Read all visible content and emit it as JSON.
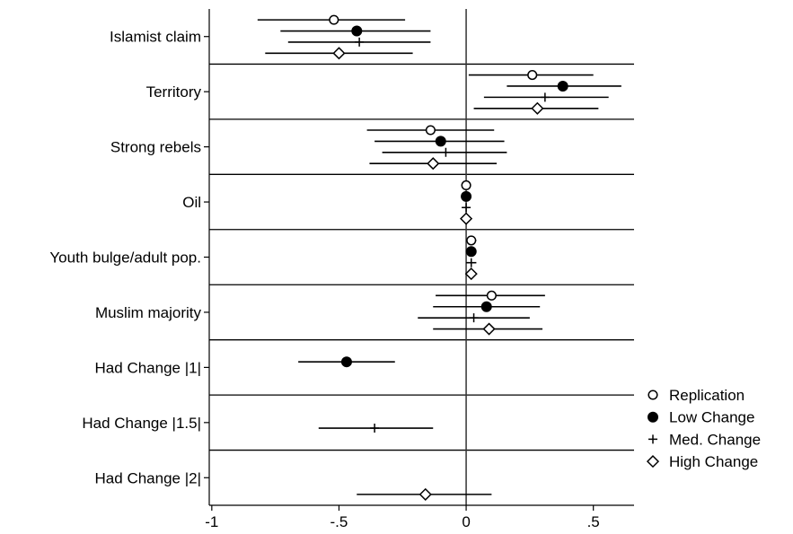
{
  "chart_data": {
    "type": "coefficient-plot",
    "title": "",
    "xlabel": "",
    "ylabel": "",
    "xlim": [
      -1.01,
      0.66
    ],
    "xticks": [
      -1,
      -0.5,
      0,
      0.5
    ],
    "xtick_labels": [
      "-1",
      "-.5",
      "0",
      ".5"
    ],
    "reference_line_x": 0,
    "categories": [
      "Islamist claim",
      "Territory",
      "Strong rebels",
      "Oil",
      "Youth bulge/adult pop.",
      "Muslim majority",
      "Had Change |1|",
      "Had Change |1.5|",
      "Had Change |2|"
    ],
    "legend_position": "bottom-right",
    "series": [
      {
        "name": "Replication",
        "marker": "hollow-circle",
        "estimates": [
          -0.52,
          0.26,
          -0.14,
          0.0,
          0.02,
          0.1,
          null,
          null,
          null
        ],
        "ci_low": [
          -0.82,
          0.01,
          -0.39,
          -0.01,
          0.0,
          -0.12,
          null,
          null,
          null
        ],
        "ci_high": [
          -0.24,
          0.5,
          0.11,
          0.01,
          0.04,
          0.31,
          null,
          null,
          null
        ]
      },
      {
        "name": "Low Change",
        "marker": "filled-circle",
        "estimates": [
          -0.43,
          0.38,
          -0.1,
          0.0,
          0.02,
          0.08,
          -0.47,
          null,
          null
        ],
        "ci_low": [
          -0.73,
          0.16,
          -0.36,
          -0.01,
          0.0,
          -0.13,
          -0.66,
          null,
          null
        ],
        "ci_high": [
          -0.14,
          0.61,
          0.15,
          0.01,
          0.04,
          0.29,
          -0.28,
          null,
          null
        ]
      },
      {
        "name": "Med. Change",
        "marker": "plus",
        "estimates": [
          -0.42,
          0.31,
          -0.08,
          0.0,
          0.02,
          0.03,
          null,
          -0.36,
          null
        ],
        "ci_low": [
          -0.7,
          0.07,
          -0.33,
          -0.01,
          0.0,
          -0.19,
          null,
          -0.58,
          null
        ],
        "ci_high": [
          -0.14,
          0.56,
          0.16,
          0.01,
          0.04,
          0.25,
          null,
          -0.13,
          null
        ]
      },
      {
        "name": "High Change",
        "marker": "hollow-diamond",
        "estimates": [
          -0.5,
          0.28,
          -0.13,
          0.0,
          0.02,
          0.09,
          null,
          null,
          -0.16
        ],
        "ci_low": [
          -0.79,
          0.03,
          -0.38,
          -0.01,
          0.0,
          -0.13,
          null,
          null,
          -0.43
        ],
        "ci_high": [
          -0.21,
          0.52,
          0.12,
          0.01,
          0.04,
          0.3,
          null,
          null,
          0.1
        ]
      }
    ]
  }
}
